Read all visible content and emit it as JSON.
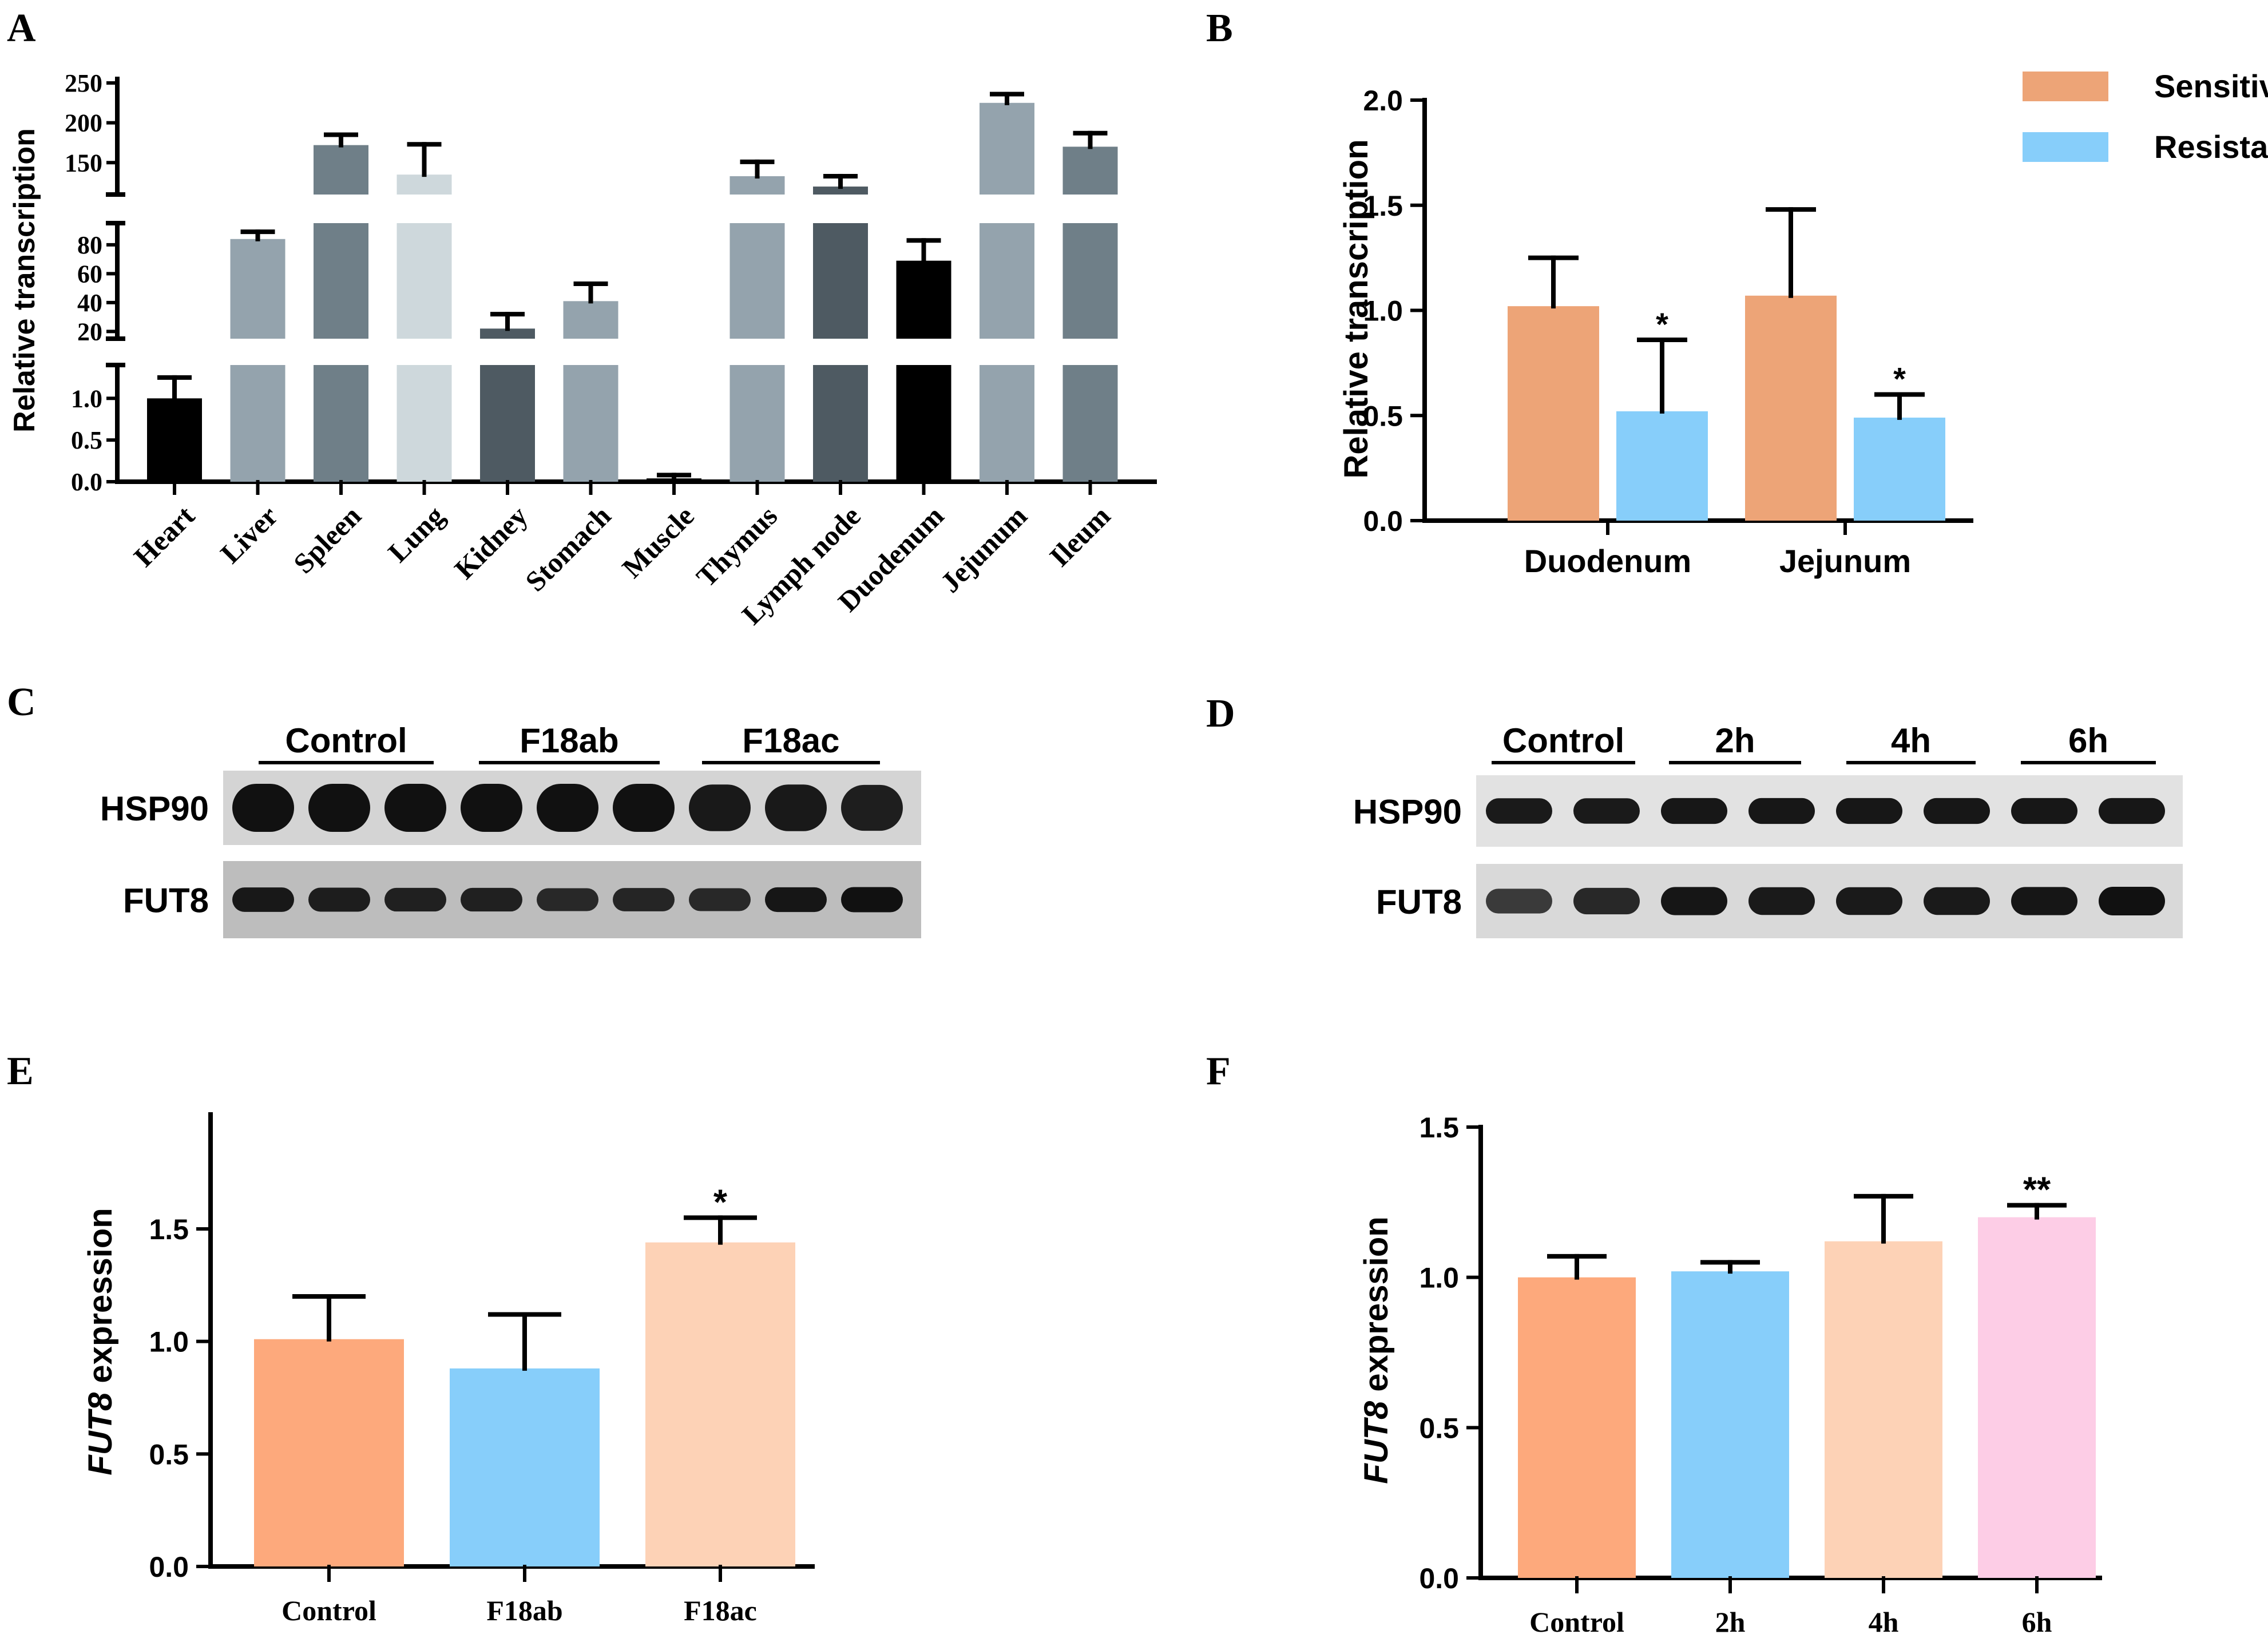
{
  "panels": {
    "A": "A",
    "B": "B",
    "C": "C",
    "D": "D",
    "E": "E",
    "F": "F"
  },
  "chart_data": [
    {
      "id": "A",
      "type": "bar",
      "ylabel": "Relative transcription",
      "axis_break": true,
      "segments": [
        {
          "range": [
            0,
            1.4
          ],
          "ticks": [
            "0.0",
            "0.5",
            "1.0"
          ]
        },
        {
          "range": [
            15,
            95
          ],
          "ticks": [
            "20",
            "40",
            "60",
            "80"
          ]
        },
        {
          "range": [
            110,
            255
          ],
          "ticks": [
            "150",
            "200",
            "250"
          ]
        }
      ],
      "categories": [
        "Heart",
        "Liver",
        "Spleen",
        "Lung",
        "Kidney",
        "Stomach",
        "Muscle",
        "Thymus",
        "Lymph node",
        "Duodenum",
        "Jejunum",
        "Ileum"
      ],
      "values": [
        1.0,
        84,
        172,
        135,
        22,
        41,
        0.04,
        133,
        120,
        69,
        225,
        170
      ],
      "errors": [
        0.25,
        5,
        13,
        38,
        10,
        12,
        0.04,
        18,
        13,
        14,
        11,
        17
      ],
      "colors": [
        "#000000",
        "#94a3ad",
        "#6f7f88",
        "#ced8dc",
        "#4e5a62",
        "#94a3ad",
        "#000000",
        "#94a3ad",
        "#4e5a62",
        "#000000",
        "#94a3ad",
        "#6f7f88"
      ]
    },
    {
      "id": "B",
      "type": "bar",
      "ylabel": "Relative transcription",
      "ylim": [
        0,
        2.0
      ],
      "ticks": [
        "0.0",
        "0.5",
        "1.0",
        "1.5",
        "2.0"
      ],
      "categories": [
        "Duodenum",
        "Jejunum"
      ],
      "series": [
        {
          "name": "Sensitive",
          "color": "#eda477",
          "values": [
            1.02,
            1.07
          ],
          "errors": [
            0.23,
            0.41
          ],
          "sig": [
            "",
            ""
          ]
        },
        {
          "name": "Resistant",
          "color": "#87cefa",
          "values": [
            0.52,
            0.49
          ],
          "errors": [
            0.34,
            0.11
          ],
          "sig": [
            "*",
            "*"
          ]
        }
      ]
    },
    {
      "id": "E",
      "type": "bar",
      "ylabel_italic": "FUT8",
      "ylabel_rest": " expression",
      "ylim": [
        0,
        2.0
      ],
      "ticks": [
        "0.0",
        "0.5",
        "1.0",
        "1.5"
      ],
      "categories": [
        "Control",
        "F18ab",
        "F18ac"
      ],
      "values": [
        1.01,
        0.88,
        1.44
      ],
      "errors": [
        0.19,
        0.24,
        0.11
      ],
      "sig": [
        "",
        "",
        "*"
      ],
      "colors": [
        "#fda97c",
        "#87cefa",
        "#fdd2b6"
      ]
    },
    {
      "id": "F",
      "type": "bar",
      "ylabel_italic": "FUT8",
      "ylabel_rest": " expression",
      "ylim": [
        0,
        1.5
      ],
      "ticks": [
        "0.0",
        "0.5",
        "1.0",
        "1.5"
      ],
      "categories": [
        "Control",
        "2h",
        "4h",
        "6h"
      ],
      "values": [
        1.0,
        1.02,
        1.12,
        1.2
      ],
      "errors": [
        0.07,
        0.03,
        0.15,
        0.04
      ],
      "sig": [
        "",
        "",
        "",
        "**"
      ],
      "colors": [
        "#fda97c",
        "#87cefa",
        "#fdd2b6",
        "#fdcde6"
      ]
    }
  ],
  "blots": {
    "C": {
      "groups": [
        "Control",
        "F18ab",
        "F18ac"
      ],
      "rows": [
        "HSP90",
        "FUT8"
      ],
      "lanes": 9,
      "hsp90_intensity": [
        1,
        1,
        1,
        1,
        1,
        1,
        0.9,
        0.9,
        0.85
      ],
      "fut8_intensity": [
        0.9,
        0.85,
        0.8,
        0.8,
        0.7,
        0.75,
        0.7,
        0.95,
        1
      ]
    },
    "D": {
      "groups": [
        "Control",
        "2h",
        "4h",
        "6h"
      ],
      "rows": [
        "HSP90",
        "FUT8"
      ],
      "lanes": 8,
      "hsp90_intensity": [
        0.9,
        0.9,
        0.95,
        0.95,
        0.95,
        0.95,
        0.95,
        0.95
      ],
      "fut8_intensity": [
        0.55,
        0.75,
        0.95,
        0.9,
        0.9,
        0.9,
        0.95,
        1
      ]
    }
  }
}
